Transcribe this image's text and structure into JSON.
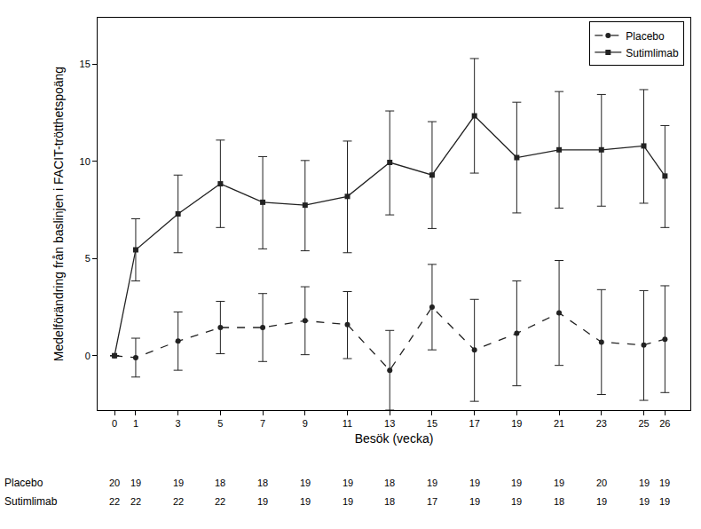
{
  "chart_data": {
    "type": "line",
    "x_label": "Besök (vecka)",
    "y_label": "Medelförändring från baslinjen i FACIT-trötthetspoäng",
    "x": [
      0,
      1,
      3,
      5,
      7,
      9,
      11,
      13,
      15,
      17,
      19,
      21,
      23,
      25,
      26
    ],
    "xlim": [
      -0.8,
      27.2
    ],
    "xticks": [
      0,
      1,
      3,
      5,
      7,
      9,
      11,
      13,
      15,
      17,
      19,
      21,
      23,
      25,
      26
    ],
    "ylim": [
      -2.8,
      17.4
    ],
    "yticks": [
      0,
      5,
      10,
      15
    ],
    "grid": false,
    "legend": "top-right",
    "series": [
      {
        "name": "Placebo",
        "color": "#222222",
        "marker": "circle",
        "line_style": "dashed",
        "values": [
          0,
          -0.1,
          0.75,
          1.45,
          1.45,
          1.8,
          1.6,
          -0.75,
          2.5,
          0.3,
          1.15,
          2.2,
          0.7,
          0.55,
          0.85
        ],
        "error_plus": [
          0,
          1.0,
          1.5,
          1.35,
          1.75,
          1.75,
          1.7,
          2.05,
          2.2,
          2.6,
          2.7,
          2.7,
          2.7,
          2.8,
          2.75
        ],
        "error_minus": [
          0,
          1.0,
          1.5,
          1.35,
          1.75,
          1.75,
          1.75,
          2.05,
          2.2,
          2.65,
          2.7,
          2.7,
          2.7,
          2.85,
          2.75
        ],
        "n": [
          20,
          19,
          19,
          18,
          18,
          19,
          19,
          18,
          19,
          19,
          19,
          19,
          20,
          19,
          19
        ]
      },
      {
        "name": "Sutimlimab",
        "color": "#222222",
        "marker": "square",
        "line_style": "solid",
        "values": [
          0,
          5.45,
          7.3,
          8.85,
          7.9,
          7.75,
          8.2,
          9.95,
          9.3,
          12.35,
          10.2,
          10.6,
          10.6,
          10.8,
          9.25
        ],
        "error_plus": [
          0,
          1.6,
          2.0,
          2.25,
          2.35,
          2.3,
          2.85,
          2.65,
          2.75,
          2.95,
          2.85,
          3.0,
          2.85,
          2.9,
          2.6
        ],
        "error_minus": [
          0,
          1.6,
          2.0,
          2.25,
          2.4,
          2.35,
          2.9,
          2.7,
          2.75,
          2.95,
          2.85,
          3.0,
          2.9,
          2.95,
          2.65
        ],
        "n": [
          22,
          22,
          22,
          22,
          19,
          19,
          19,
          18,
          17,
          19,
          19,
          18,
          19,
          19,
          19
        ]
      }
    ]
  }
}
